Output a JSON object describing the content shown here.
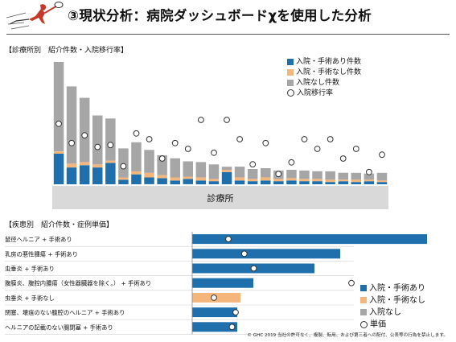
{
  "header": {
    "title": "③現状分析：病院ダッシュボードχを使用した分析",
    "logo_icon": "tennis-player-logo",
    "accent_color": "#c43a2a"
  },
  "colors": {
    "with_surgery": "#1f6fad",
    "without_surgery": "#f4b67a",
    "no_admission": "#a6a6a6",
    "axis_band": "#d9d9d9"
  },
  "top_section": {
    "label": "【診療所別　紹介件数・入院移行率】",
    "axis_band_label": "診療所",
    "legend": [
      "入院・手術あり件数",
      "入院・手術なし件数",
      "入院なし件数",
      "入院移行率"
    ]
  },
  "bottom_section": {
    "label": "【疾患別　紹介件数・症例単価】",
    "legend": [
      "入院・手術あり",
      "入院・手術なし",
      "入院なし",
      "単価"
    ]
  },
  "footer": {
    "copyright": "© GHC 2019 当社の許可なく、複製、転用、および第三者への配付、公表等の行為を禁止します。"
  },
  "chart_data": [
    {
      "type": "bar",
      "stacked": true,
      "xlabel": "診療所",
      "legend_position": "top-right",
      "series": [
        {
          "name": "入院・手術あり件数",
          "values": [
            40,
            22,
            25,
            22,
            28,
            6,
            13,
            9,
            8,
            5,
            7,
            5,
            4,
            16,
            5,
            4,
            5,
            4,
            5,
            4,
            4,
            3,
            4,
            3,
            4,
            3
          ]
        },
        {
          "name": "入院・手術なし件数",
          "values": [
            3,
            5,
            4,
            4,
            3,
            3,
            4,
            6,
            4,
            4,
            3,
            4,
            3,
            3,
            4,
            3,
            4,
            3,
            3,
            3,
            3,
            3,
            2,
            3,
            2,
            2
          ]
        },
        {
          "name": "入院なし件数",
          "values": [
            117,
            101,
            84,
            64,
            55,
            38,
            38,
            30,
            26,
            25,
            20,
            20,
            19,
            4,
            14,
            13,
            12,
            11,
            11,
            11,
            10,
            11,
            9,
            9,
            8,
            10
          ]
        }
      ],
      "line_series": {
        "name": "入院移行率",
        "values": [
          0.28,
          0.18,
          0.22,
          0.16,
          0.17,
          0.06,
          0.23,
          0.2,
          0.1,
          0.18,
          0.15,
          0.3,
          0.13,
          0.3,
          0.2,
          0.07,
          0.18,
          0.02,
          0.08,
          0.2,
          0.15,
          0.2,
          0.1,
          0.15,
          0.03,
          0.12
        ]
      }
    },
    {
      "type": "bar",
      "orientation": "horizontal",
      "legend_position": "bottom-right",
      "categories": [
        "鼠径ヘルニア + 手術あり",
        "乳房の悪性腫瘍 + 手術あり",
        "虫垂炎 + 手術あり",
        "腹膜炎、腹腔内膿瘍（女性器臓器を除く。） + 手術あり",
        "虫垂炎 + 手術なし",
        "閉塞、壊疽のない腹腔のヘルニア + 手術あり",
        "ヘルニアの記載のない腸閉塞 + 手術あり"
      ],
      "series": [
        {
          "name": "件数",
          "values": [
            73,
            46,
            38,
            19,
            15,
            14,
            14
          ]
        },
        {
          "name": "単価",
          "values": [
            0.5,
            0.72,
            0.85,
            2.2,
            0.3,
            0.6,
            0.55
          ]
        }
      ],
      "bar_category": [
        "入院・手術あり",
        "入院・手術あり",
        "入院・手術あり",
        "入院・手術あり",
        "入院・手術なし",
        "入院・手術あり",
        "入院・手術あり"
      ]
    }
  ]
}
